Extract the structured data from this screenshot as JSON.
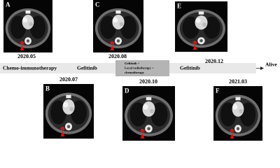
{
  "panels": [
    {
      "label": "A",
      "date": "2020.05"
    },
    {
      "label": "B",
      "date": "2020.07"
    },
    {
      "label": "C",
      "date": "2020.08"
    },
    {
      "label": "D",
      "date": "2020.10"
    },
    {
      "label": "E",
      "date": "2020.12"
    },
    {
      "label": "F",
      "date": "2021.03"
    }
  ],
  "timeline": {
    "phases": [
      {
        "lines": [
          "Chemo-immunotherapy"
        ]
      },
      {
        "lines": [
          "Gefitinib"
        ]
      },
      {
        "lines": [
          "Gefitinib +",
          "Local radiotherapy +",
          "chemotherapy"
        ]
      },
      {
        "lines": [
          "Gefitinib"
        ]
      }
    ],
    "outcome": "Alive"
  }
}
